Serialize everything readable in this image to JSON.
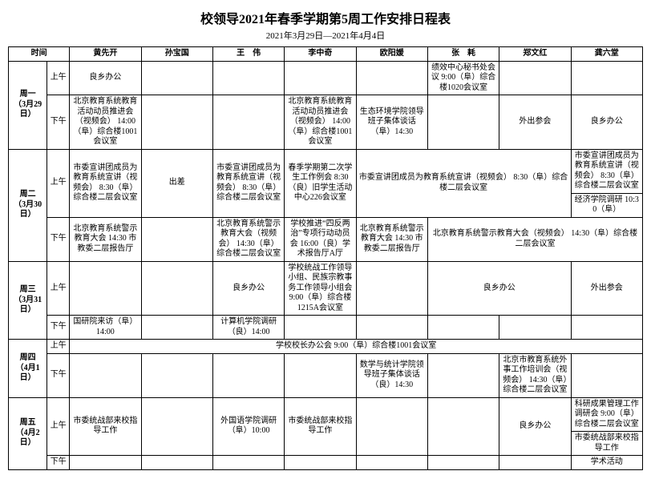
{
  "title": "校领导2021年春季学期第5周工作安排日程表",
  "subtitle": "2021年3月29日—2021年4月4日",
  "header": {
    "time": "时间",
    "people": [
      "黄先开",
      "孙宝国",
      "王　伟",
      "李中奇",
      "欧阳媛",
      "张　耗",
      "郑文红",
      "龚六堂"
    ]
  },
  "slots": {
    "am": "上午",
    "pm": "下午"
  },
  "days": {
    "mon": {
      "label": "周一",
      "date": "（3月29日）"
    },
    "tue": {
      "label": "周二",
      "date": "（3月30日）"
    },
    "wed": {
      "label": "周三",
      "date": "（3月31日）"
    },
    "thu": {
      "label": "周四",
      "date": "（4月1日）"
    },
    "fri": {
      "label": "周五",
      "date": "（4月2日）"
    }
  },
  "cells": {
    "mon_am_hxk": "良乡办公",
    "mon_am_zy": "绩效中心秘书处会议 9:00（阜）综合楼1020会议室",
    "mon_pm_hxk": "北京教育系统教育活动动员推进会（视频会） 14:00（阜）综合楼1001会议室",
    "mon_pm_lzq": "北京教育系统教育活动动员推进会（视频会） 14:00（阜）综合楼1001会议室",
    "mon_pm_oyy": "生态环境学院领导班子集体谈话（阜）14:30",
    "mon_pm_zwh": "外出参会",
    "mon_pm_glt": "良乡办公",
    "tue_am_hxk": "市委宣讲团成员为教育系统宣讲（视频会） 8:30（阜）综合楼二层会议室",
    "tue_am_sbg": "出差",
    "tue_am_ww": "市委宣讲团成员为教育系统宣讲（视频会） 8:30（阜）综合楼二层会议室",
    "tue_am_lzq": "春季学期第二次学生工作例会 8:30（良）旧学生活动中心226会议室",
    "tue_am_merged": "市委宣讲团成员为教育系统宣讲（视频会） 8:30（阜）综合楼二层会议室",
    "tue_am_glt1": "市委宣讲团成员为教育系统宣讲（视频会） 8:30（阜）综合楼二层会议室",
    "tue_am_glt2": "经济学院调研 10:30（阜）",
    "tue_pm_hxk": "北京教育系统警示教育大会 14:30 市教委二层报告厅",
    "tue_pm_ww": "北京教育系统警示教育大会（视频会） 14:30（阜）综合楼二层会议室",
    "tue_pm_lzq": "学校推进“四反两治”专项行动动员会 16:00（良）学术报告厅A厅",
    "tue_pm_oyy": "北京教育系统警示教育大会 14:30 市教委二层报告厅",
    "tue_pm_merged": "北京教育系统警示教育大会（视频会） 14:30（阜）综合楼二层会议室",
    "wed_am_ww": "良乡办公",
    "wed_am_lzq": "学校统战工作领导小组、民族宗教事务工作领导小组会 9:00（阜）综合楼1215A会议室",
    "wed_am_zy": "良乡办公",
    "wed_am_glt": "外出参会",
    "wed_pm_hxk": "国研院来访（阜）14:00",
    "wed_pm_ww": "计算机学院调研（良）14:00",
    "thu_am_merged": "学校校长办公会 9:00（阜）综合楼1001会议室",
    "thu_pm_oyy": "数学与统计学院领导班子集体谈话（良）14:30",
    "thu_pm_zwh": "北京市教育系统外事工作培训会（视频会） 14:30（阜）综合楼二层会议室",
    "fri_am_hxk": "市委统战部来校指导工作",
    "fri_am_ww": "外国语学院调研（阜）10:00",
    "fri_am_lzq": "市委统战部来校指导工作",
    "fri_am_zwh": "良乡办公",
    "fri_am_glt1": "科研成果管理工作调研会 9:00（阜）综合楼二层会议室",
    "fri_am_glt2": "市委统战部来校指导工作",
    "fri_pm_glt": "学术活动"
  }
}
